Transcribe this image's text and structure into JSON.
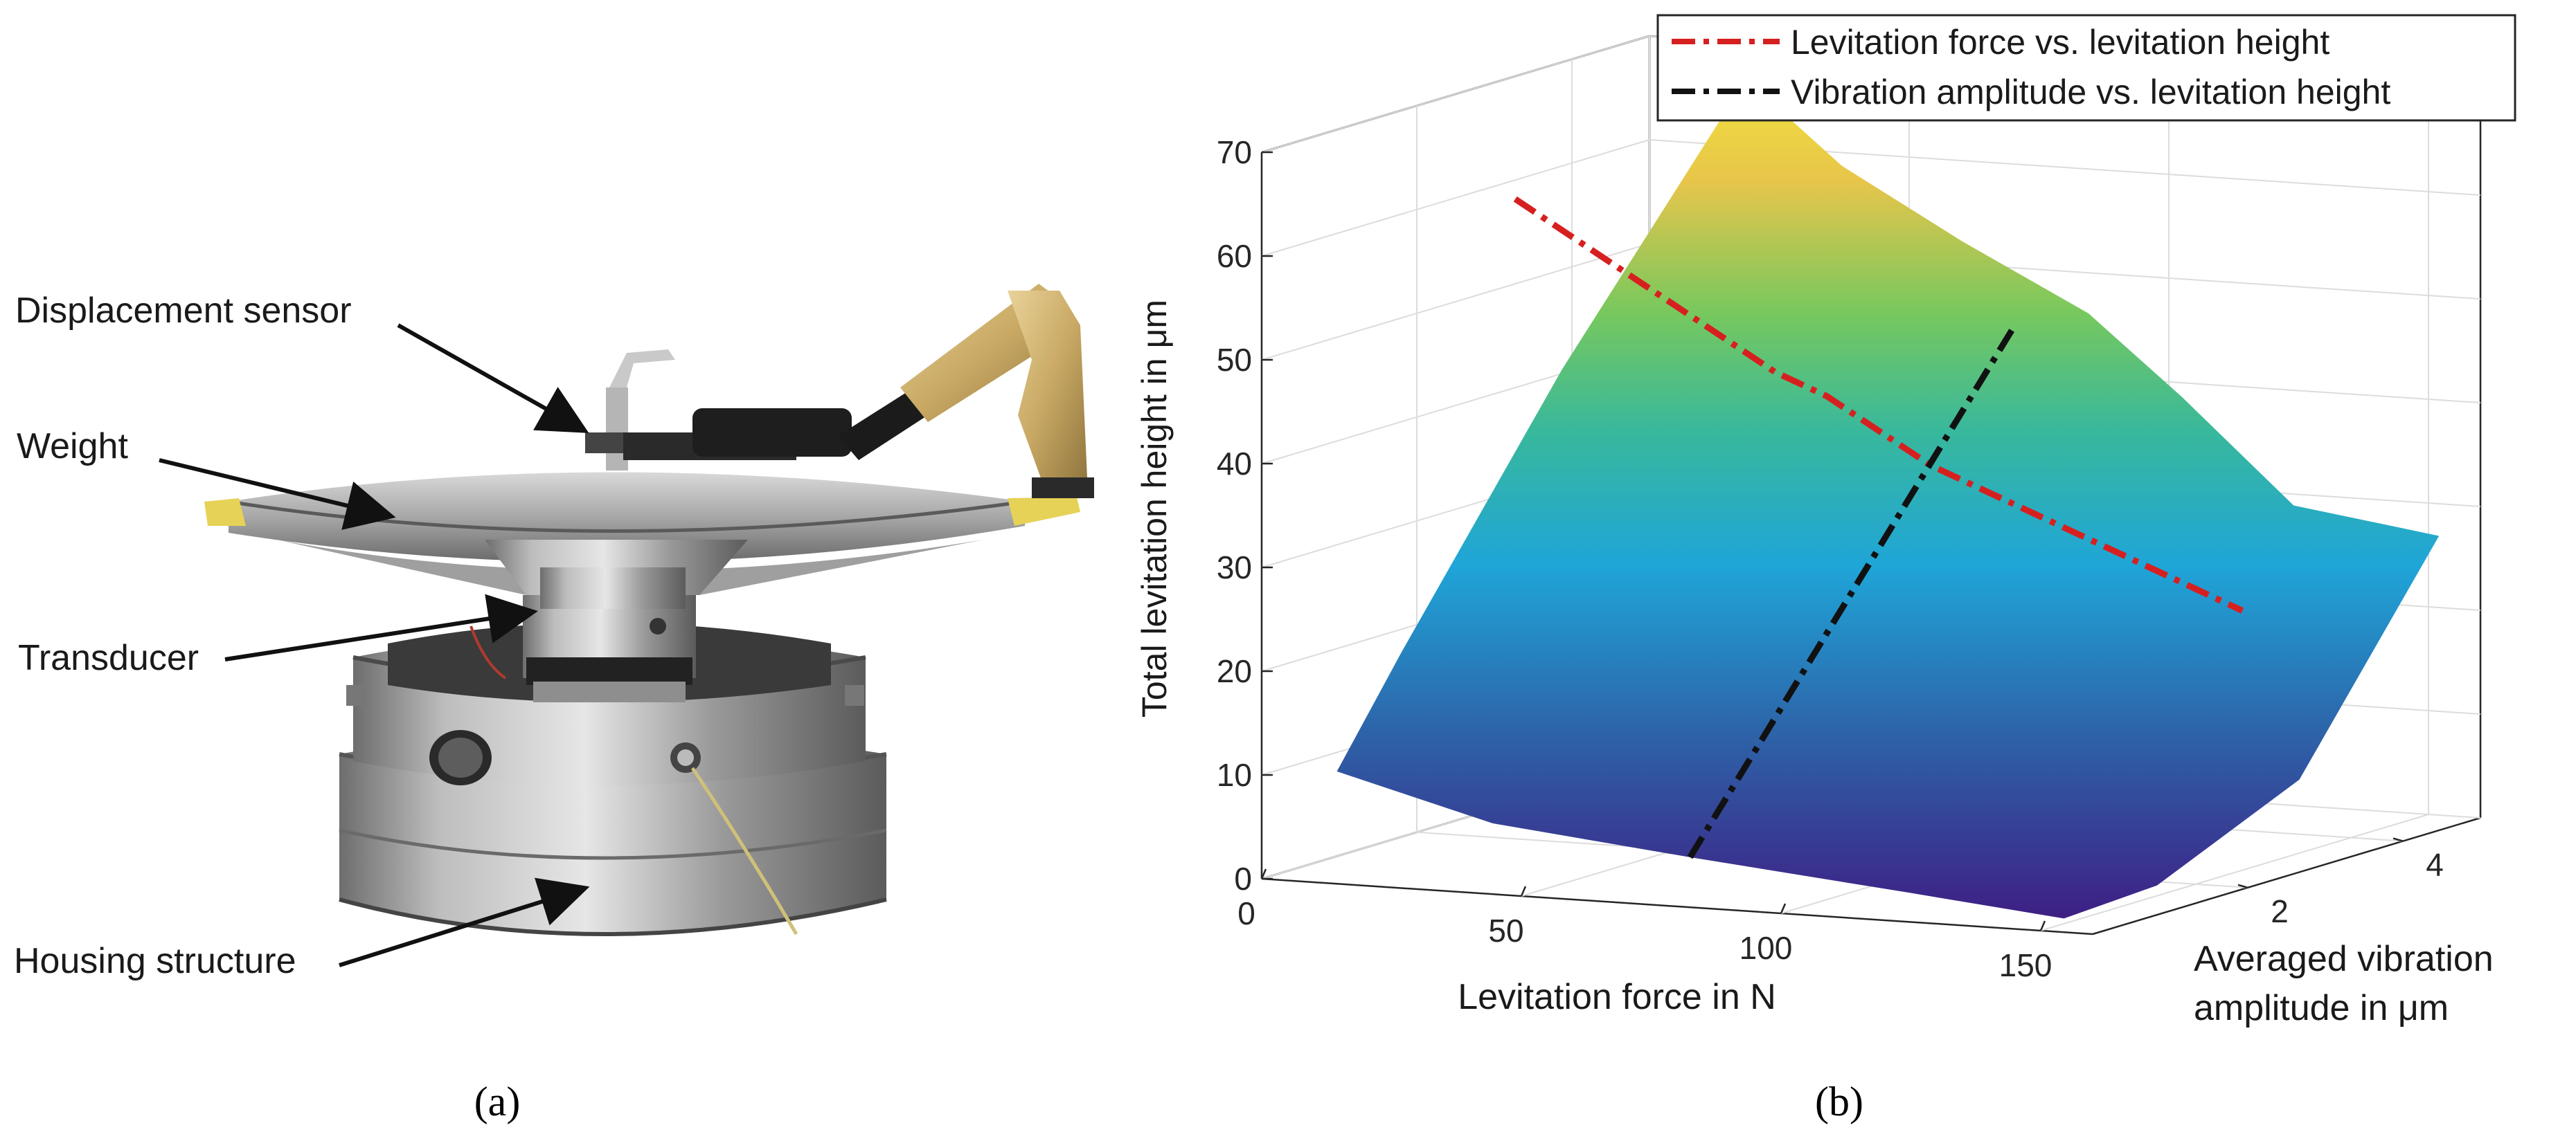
{
  "panel_a": {
    "caption": "(a)",
    "annotations": [
      {
        "id": "displacement-sensor",
        "text": "Displacement sensor"
      },
      {
        "id": "weight",
        "text": "Weight"
      },
      {
        "id": "transducer",
        "text": "Transducer"
      },
      {
        "id": "housing-structure",
        "text": "Housing structure"
      }
    ]
  },
  "panel_b": {
    "caption": "(b)"
  },
  "chart_data": {
    "type": "surface3d",
    "xlabel": "Levitation force in N",
    "ylabel": "Averaged vibration amplitude in μm",
    "ylabel_lines": [
      "Averaged vibration",
      "amplitude in μm"
    ],
    "zlabel": "Total levitation height in μm",
    "xlim": [
      0,
      160
    ],
    "ylim": [
      0,
      5
    ],
    "zlim": [
      0,
      70
    ],
    "x_ticks": [
      0,
      50,
      100,
      150
    ],
    "y_ticks": [
      2,
      4
    ],
    "z_ticks": [
      0,
      10,
      20,
      30,
      40,
      50,
      60,
      70
    ],
    "grid": true,
    "legend_position": "top-right",
    "colormap": [
      "#3e1f84",
      "#2d63a8",
      "#1fa5d8",
      "#38b89c",
      "#76c85e",
      "#e8c54a",
      "#f0e13c"
    ],
    "series": [
      {
        "name": "Levitation force vs. levitation height",
        "color": "#d62020",
        "style": "dash-dot",
        "x": [
          10,
          20,
          30,
          40,
          50,
          60,
          70,
          80,
          90,
          100,
          110,
          120,
          130,
          140,
          150
        ],
        "y": [
          2.6,
          2.6,
          2.6,
          2.6,
          2.6,
          2.6,
          2.6,
          2.6,
          2.6,
          2.6,
          2.6,
          2.6,
          2.6,
          2.6,
          2.6
        ],
        "z": [
          60,
          57,
          54,
          51,
          48,
          45,
          43,
          40,
          37,
          35,
          33,
          31,
          29,
          27,
          25
        ]
      },
      {
        "name": "Vibration amplitude vs. levitation height",
        "color": "#111111",
        "style": "dash-dot",
        "x": [
          78,
          78,
          78,
          78,
          78,
          78,
          78,
          78
        ],
        "y": [
          0.3,
          0.9,
          1.5,
          2.1,
          2.7,
          3.3,
          3.9,
          4.5
        ],
        "z": [
          4,
          10,
          16,
          22,
          28,
          34,
          40,
          46
        ]
      }
    ]
  }
}
